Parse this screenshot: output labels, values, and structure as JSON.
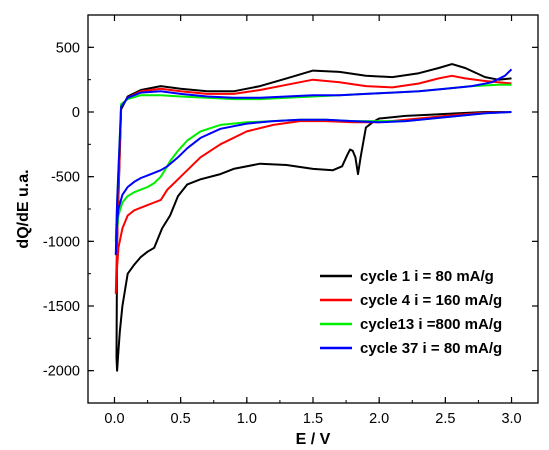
{
  "chart_data": {
    "type": "line",
    "title": "",
    "xlabel": "E / V",
    "ylabel": "dQ/dE u.a.",
    "xlim": [
      -0.2,
      3.2
    ],
    "ylim": [
      -2250,
      750
    ],
    "x_ticks": [
      0.0,
      0.5,
      1.0,
      1.5,
      2.0,
      2.5,
      3.0
    ],
    "x_tick_labels": [
      "0.0",
      "0.5",
      "1.0",
      "1.5",
      "2.0",
      "2.5",
      "3.0"
    ],
    "y_ticks": [
      500,
      0,
      -500,
      -1000,
      -1500,
      -2000
    ],
    "y_tick_labels": [
      "500",
      "0",
      "-500",
      "-1000",
      "-1500",
      "-2000"
    ],
    "grid": false,
    "legend_position": "bottom-right",
    "series": [
      {
        "name": "cycle 1 i = 80 mA/g",
        "color": "#000000",
        "x": [
          3.0,
          2.8,
          2.6,
          2.4,
          2.2,
          2.0,
          1.95,
          1.9,
          1.86,
          1.84,
          1.82,
          1.8,
          1.78,
          1.76,
          1.72,
          1.65,
          1.5,
          1.3,
          1.1,
          0.9,
          0.8,
          0.65,
          0.55,
          0.48,
          0.42,
          0.36,
          0.3,
          0.25,
          0.2,
          0.15,
          0.1,
          0.06,
          0.04,
          0.03,
          0.02,
          0.015,
          0.02,
          0.05,
          0.1,
          0.2,
          0.35,
          0.5,
          0.7,
          0.9,
          1.1,
          1.3,
          1.5,
          1.7,
          1.9,
          2.1,
          2.3,
          2.45,
          2.55,
          2.65,
          2.8,
          2.9,
          3.0
        ],
        "y": [
          0,
          0,
          -10,
          -20,
          -30,
          -50,
          -80,
          -120,
          -350,
          -480,
          -350,
          -300,
          -290,
          -330,
          -420,
          -450,
          -440,
          -410,
          -400,
          -440,
          -480,
          -520,
          -560,
          -650,
          -800,
          -900,
          -1050,
          -1080,
          -1120,
          -1180,
          -1250,
          -1500,
          -1700,
          -1850,
          -2000,
          -1900,
          -1000,
          20,
          120,
          170,
          200,
          180,
          160,
          160,
          200,
          260,
          320,
          310,
          280,
          270,
          300,
          340,
          370,
          340,
          270,
          250,
          260
        ]
      },
      {
        "name": "cycle 4 i = 160 mA/g",
        "color": "#ff0000",
        "x": [
          3.0,
          2.8,
          2.6,
          2.4,
          2.2,
          2.0,
          1.8,
          1.6,
          1.4,
          1.2,
          1.0,
          0.8,
          0.65,
          0.55,
          0.48,
          0.4,
          0.35,
          0.3,
          0.25,
          0.2,
          0.15,
          0.1,
          0.06,
          0.03,
          0.02,
          0.01,
          0.02,
          0.05,
          0.1,
          0.2,
          0.35,
          0.5,
          0.7,
          0.9,
          1.1,
          1.3,
          1.5,
          1.7,
          1.9,
          2.1,
          2.3,
          2.45,
          2.55,
          2.65,
          2.8,
          2.9,
          3.0
        ],
        "y": [
          0,
          -5,
          -20,
          -40,
          -60,
          -80,
          -80,
          -70,
          -70,
          -100,
          -150,
          -250,
          -350,
          -450,
          -520,
          -600,
          -680,
          -700,
          -720,
          -740,
          -760,
          -800,
          -900,
          -1050,
          -1200,
          -1400,
          -1000,
          40,
          110,
          160,
          180,
          160,
          140,
          140,
          170,
          210,
          250,
          230,
          200,
          190,
          220,
          260,
          280,
          260,
          240,
          230,
          220
        ]
      },
      {
        "name": "cycle13 i =800 mA/g",
        "color": "#00ee00",
        "x": [
          3.0,
          2.8,
          2.6,
          2.4,
          2.2,
          2.0,
          1.8,
          1.6,
          1.4,
          1.2,
          1.0,
          0.8,
          0.65,
          0.55,
          0.48,
          0.42,
          0.38,
          0.35,
          0.3,
          0.25,
          0.2,
          0.15,
          0.1,
          0.06,
          0.03,
          0.02,
          0.01,
          0.02,
          0.05,
          0.1,
          0.2,
          0.35,
          0.5,
          0.7,
          0.9,
          1.1,
          1.3,
          1.5,
          1.7,
          1.9,
          2.1,
          2.3,
          2.5,
          2.7,
          2.9,
          3.0
        ],
        "y": [
          0,
          -10,
          -30,
          -50,
          -70,
          -70,
          -70,
          -60,
          -60,
          -70,
          -80,
          -100,
          -150,
          -220,
          -300,
          -380,
          -450,
          -500,
          -550,
          -580,
          -600,
          -620,
          -650,
          -700,
          -800,
          -900,
          -1000,
          -700,
          60,
          100,
          130,
          130,
          120,
          110,
          100,
          100,
          110,
          120,
          130,
          140,
          150,
          160,
          180,
          200,
          210,
          210
        ]
      },
      {
        "name": "cycle 37 i = 80 mA/g",
        "color": "#0000ff",
        "x": [
          3.0,
          2.8,
          2.6,
          2.4,
          2.2,
          2.0,
          1.8,
          1.6,
          1.4,
          1.2,
          1.0,
          0.8,
          0.65,
          0.55,
          0.48,
          0.4,
          0.35,
          0.3,
          0.25,
          0.2,
          0.15,
          0.1,
          0.06,
          0.03,
          0.02,
          0.01,
          0.02,
          0.05,
          0.1,
          0.2,
          0.35,
          0.5,
          0.7,
          0.9,
          1.1,
          1.3,
          1.5,
          1.7,
          1.9,
          2.1,
          2.3,
          2.5,
          2.7,
          2.85,
          2.95,
          3.0
        ],
        "y": [
          0,
          -10,
          -30,
          -50,
          -70,
          -80,
          -70,
          -60,
          -60,
          -70,
          -90,
          -130,
          -200,
          -280,
          -350,
          -420,
          -450,
          -470,
          -490,
          -510,
          -540,
          -580,
          -640,
          -750,
          -850,
          -1100,
          -700,
          40,
          110,
          150,
          160,
          140,
          120,
          110,
          110,
          120,
          130,
          130,
          140,
          150,
          160,
          180,
          200,
          230,
          280,
          330
        ]
      }
    ]
  }
}
